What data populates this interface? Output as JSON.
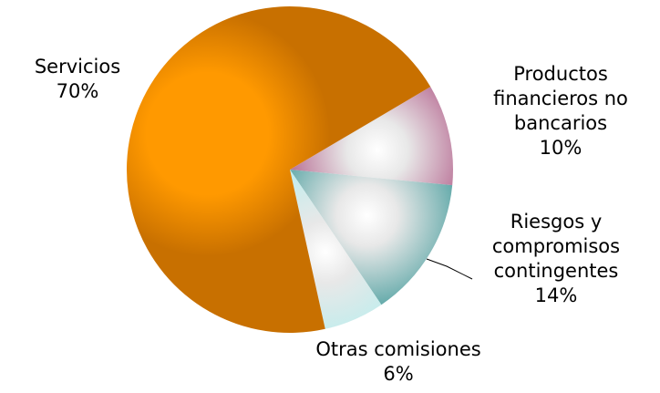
{
  "chart_data": {
    "type": "pie",
    "categories": [
      "Productos financieros no bancarios",
      "Riesgos y compromisos contingentes",
      "Otras comisiones",
      "Servicios"
    ],
    "values": [
      10,
      14,
      6,
      70
    ],
    "value_labels": [
      "10%",
      "14%",
      "6%",
      "70%"
    ],
    "colors": [
      "#a0306a",
      "#1f8a8a",
      "#a8f0f0",
      "#ff9900"
    ]
  }
}
